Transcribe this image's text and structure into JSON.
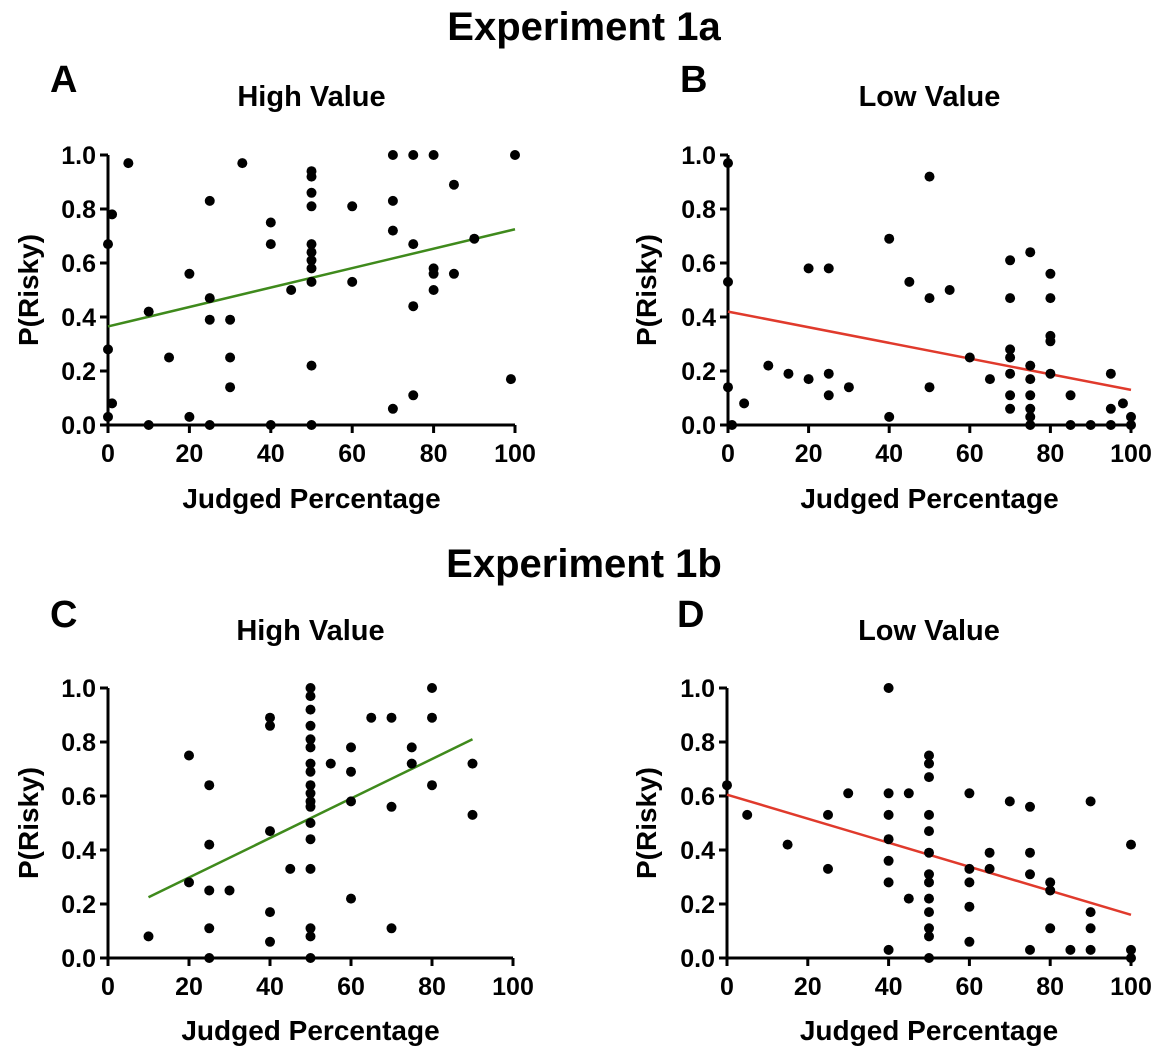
{
  "sections": [
    {
      "title": "Experiment 1a"
    },
    {
      "title": "Experiment 1b"
    }
  ],
  "chart_data": [
    {
      "type": "scatter",
      "panel": "A",
      "title": "High Value",
      "xlabel": "Judged Percentage",
      "ylabel": "P(Risky)",
      "xlim": [
        0,
        100
      ],
      "ylim": [
        0,
        1
      ],
      "xticks": [
        "0",
        "20",
        "40",
        "60",
        "80",
        "100"
      ],
      "yticks": [
        "0.0",
        "0.2",
        "0.4",
        "0.6",
        "0.8",
        "1.0"
      ],
      "fit_color": "#3f8a1c",
      "fit": [
        [
          0,
          0.365
        ],
        [
          100,
          0.725
        ]
      ],
      "points": [
        [
          0,
          0.03
        ],
        [
          0,
          0.28
        ],
        [
          0,
          0.67
        ],
        [
          1,
          0.08
        ],
        [
          1,
          0.78
        ],
        [
          5,
          0.97
        ],
        [
          10,
          0
        ],
        [
          10,
          0.42
        ],
        [
          15,
          0.25
        ],
        [
          20,
          0.03
        ],
        [
          20,
          0.56
        ],
        [
          25,
          0
        ],
        [
          25,
          0.39
        ],
        [
          25,
          0.47
        ],
        [
          25,
          0.83
        ],
        [
          30,
          0.14
        ],
        [
          30,
          0.25
        ],
        [
          30,
          0.39
        ],
        [
          33,
          0.97
        ],
        [
          40,
          0
        ],
        [
          40,
          0.67
        ],
        [
          40,
          0.75
        ],
        [
          45,
          0.5
        ],
        [
          50,
          0
        ],
        [
          50,
          0.22
        ],
        [
          50,
          0.53
        ],
        [
          50,
          0.58
        ],
        [
          50,
          0.61
        ],
        [
          50,
          0.64
        ],
        [
          50,
          0.67
        ],
        [
          50,
          0.81
        ],
        [
          50,
          0.86
        ],
        [
          50,
          0.92
        ],
        [
          50,
          0.94
        ],
        [
          60,
          0.53
        ],
        [
          60,
          0.81
        ],
        [
          70,
          0.06
        ],
        [
          70,
          0.72
        ],
        [
          70,
          0.83
        ],
        [
          70,
          1
        ],
        [
          75,
          0.11
        ],
        [
          75,
          0.44
        ],
        [
          75,
          0.67
        ],
        [
          75,
          1
        ],
        [
          80,
          0.5
        ],
        [
          80,
          0.56
        ],
        [
          80,
          0.58
        ],
        [
          80,
          1
        ],
        [
          85,
          0.56
        ],
        [
          85,
          0.89
        ],
        [
          90,
          0.69
        ],
        [
          99,
          0.17
        ],
        [
          100,
          1
        ]
      ]
    },
    {
      "type": "scatter",
      "panel": "B",
      "title": "Low Value",
      "xlabel": "Judged Percentage",
      "ylabel": "P(Risky)",
      "xlim": [
        0,
        100
      ],
      "ylim": [
        0,
        1
      ],
      "xticks": [
        "0",
        "20",
        "40",
        "60",
        "80",
        "100"
      ],
      "yticks": [
        "0.0",
        "0.2",
        "0.4",
        "0.6",
        "0.8",
        "1.0"
      ],
      "fit_color": "#e03a2c",
      "fit": [
        [
          0,
          0.42
        ],
        [
          100,
          0.13
        ]
      ],
      "points": [
        [
          0,
          0.14
        ],
        [
          0,
          0.53
        ],
        [
          0,
          0.97
        ],
        [
          1,
          0
        ],
        [
          4,
          0.08
        ],
        [
          10,
          0.22
        ],
        [
          15,
          0.19
        ],
        [
          20,
          0.17
        ],
        [
          20,
          0.58
        ],
        [
          25,
          0.11
        ],
        [
          25,
          0.19
        ],
        [
          25,
          0.58
        ],
        [
          30,
          0.14
        ],
        [
          40,
          0.03
        ],
        [
          40,
          0.69
        ],
        [
          45,
          0.53
        ],
        [
          50,
          0.14
        ],
        [
          50,
          0.47
        ],
        [
          50,
          0.92
        ],
        [
          55,
          0.5
        ],
        [
          60,
          0.25
        ],
        [
          65,
          0.17
        ],
        [
          70,
          0.06
        ],
        [
          70,
          0.11
        ],
        [
          70,
          0.19
        ],
        [
          70,
          0.25
        ],
        [
          70,
          0.28
        ],
        [
          70,
          0.47
        ],
        [
          70,
          0.61
        ],
        [
          75,
          0
        ],
        [
          75,
          0.03
        ],
        [
          75,
          0.06
        ],
        [
          75,
          0.11
        ],
        [
          75,
          0.17
        ],
        [
          75,
          0.22
        ],
        [
          75,
          0.64
        ],
        [
          80,
          0.19
        ],
        [
          80,
          0.31
        ],
        [
          80,
          0.33
        ],
        [
          80,
          0.47
        ],
        [
          80,
          0.56
        ],
        [
          85,
          0
        ],
        [
          85,
          0.11
        ],
        [
          90,
          0
        ],
        [
          95,
          0
        ],
        [
          95,
          0.06
        ],
        [
          95,
          0.19
        ],
        [
          98,
          0.08
        ],
        [
          100,
          0
        ],
        [
          100,
          0.03
        ]
      ]
    },
    {
      "type": "scatter",
      "panel": "C",
      "title": "High Value",
      "xlabel": "Judged Percentage",
      "ylabel": "P(Risky)",
      "xlim": [
        0,
        100
      ],
      "ylim": [
        0,
        1
      ],
      "xticks": [
        "0",
        "20",
        "40",
        "60",
        "80",
        "100"
      ],
      "yticks": [
        "0.0",
        "0.2",
        "0.4",
        "0.6",
        "0.8",
        "1.0"
      ],
      "fit_color": "#3f8a1c",
      "fit": [
        [
          10,
          0.225
        ],
        [
          90,
          0.81
        ]
      ],
      "points": [
        [
          10,
          0.08
        ],
        [
          20,
          0.28
        ],
        [
          20,
          0.75
        ],
        [
          25,
          0
        ],
        [
          25,
          0.11
        ],
        [
          25,
          0.25
        ],
        [
          25,
          0.42
        ],
        [
          25,
          0.64
        ],
        [
          30,
          0.25
        ],
        [
          40,
          0.06
        ],
        [
          40,
          0.17
        ],
        [
          40,
          0.47
        ],
        [
          40,
          0.86
        ],
        [
          40,
          0.89
        ],
        [
          45,
          0.33
        ],
        [
          50,
          0
        ],
        [
          50,
          0.08
        ],
        [
          50,
          0.11
        ],
        [
          50,
          0.33
        ],
        [
          50,
          0.44
        ],
        [
          50,
          0.5
        ],
        [
          50,
          0.56
        ],
        [
          50,
          0.58
        ],
        [
          50,
          0.61
        ],
        [
          50,
          0.64
        ],
        [
          50,
          0.69
        ],
        [
          50,
          0.72
        ],
        [
          50,
          0.78
        ],
        [
          50,
          0.81
        ],
        [
          50,
          0.86
        ],
        [
          50,
          0.92
        ],
        [
          50,
          0.97
        ],
        [
          50,
          1
        ],
        [
          55,
          0.72
        ],
        [
          60,
          0.22
        ],
        [
          60,
          0.58
        ],
        [
          60,
          0.69
        ],
        [
          60,
          0.78
        ],
        [
          65,
          0.89
        ],
        [
          70,
          0.11
        ],
        [
          70,
          0.56
        ],
        [
          70,
          0.89
        ],
        [
          75,
          0.72
        ],
        [
          75,
          0.78
        ],
        [
          80,
          0.64
        ],
        [
          80,
          0.89
        ],
        [
          80,
          1
        ],
        [
          90,
          0.53
        ],
        [
          90,
          0.72
        ]
      ]
    },
    {
      "type": "scatter",
      "panel": "D",
      "title": "Low Value",
      "xlabel": "Judged Percentage",
      "ylabel": "P(Risky)",
      "xlim": [
        0,
        100
      ],
      "ylim": [
        0,
        1
      ],
      "xticks": [
        "0",
        "20",
        "40",
        "60",
        "80",
        "100"
      ],
      "yticks": [
        "0.0",
        "0.2",
        "0.4",
        "0.6",
        "0.8",
        "1.0"
      ],
      "fit_color": "#e03a2c",
      "fit": [
        [
          0,
          0.605
        ],
        [
          100,
          0.16
        ]
      ],
      "points": [
        [
          0,
          0.64
        ],
        [
          5,
          0.53
        ],
        [
          15,
          0.42
        ],
        [
          25,
          0.33
        ],
        [
          25,
          0.53
        ],
        [
          30,
          0.61
        ],
        [
          40,
          0.03
        ],
        [
          40,
          0.28
        ],
        [
          40,
          0.36
        ],
        [
          40,
          0.44
        ],
        [
          40,
          0.53
        ],
        [
          40,
          0.61
        ],
        [
          40,
          1
        ],
        [
          45,
          0.22
        ],
        [
          45,
          0.61
        ],
        [
          50,
          0
        ],
        [
          50,
          0.08
        ],
        [
          50,
          0.11
        ],
        [
          50,
          0.17
        ],
        [
          50,
          0.22
        ],
        [
          50,
          0.28
        ],
        [
          50,
          0.31
        ],
        [
          50,
          0.39
        ],
        [
          50,
          0.47
        ],
        [
          50,
          0.53
        ],
        [
          50,
          0.67
        ],
        [
          50,
          0.72
        ],
        [
          50,
          0.75
        ],
        [
          60,
          0.06
        ],
        [
          60,
          0.19
        ],
        [
          60,
          0.28
        ],
        [
          60,
          0.33
        ],
        [
          60,
          0.61
        ],
        [
          65,
          0.33
        ],
        [
          65,
          0.39
        ],
        [
          70,
          0.58
        ],
        [
          75,
          0.03
        ],
        [
          75,
          0.31
        ],
        [
          75,
          0.39
        ],
        [
          75,
          0.56
        ],
        [
          80,
          0.11
        ],
        [
          80,
          0.25
        ],
        [
          80,
          0.28
        ],
        [
          85,
          0.03
        ],
        [
          90,
          0.03
        ],
        [
          90,
          0.11
        ],
        [
          90,
          0.17
        ],
        [
          90,
          0.58
        ],
        [
          100,
          0
        ],
        [
          100,
          0.03
        ],
        [
          100,
          0.42
        ]
      ]
    }
  ]
}
